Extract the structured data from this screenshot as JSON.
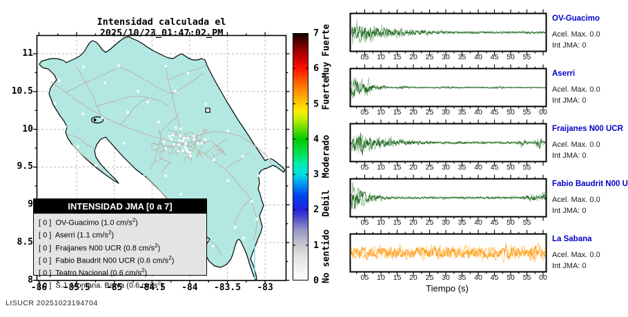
{
  "header": {
    "title": "Intensidad calculada el 2025/10/23_01:47:02_PM"
  },
  "watermark": "LISUCR 20251023194704",
  "map": {
    "x_ticks": [
      "-86",
      "-85.5",
      "-85",
      "-84.5",
      "-84",
      "-83.5",
      "-83"
    ],
    "y_ticks": [
      "11",
      "10.5",
      "10",
      "9.5",
      "9",
      "8.5",
      "8"
    ],
    "land_color": "#b3e8e2",
    "road_color": "#bdb5ad",
    "grid_color": "#b9b9b9",
    "station_color": "#ffffff",
    "marker_glyph": "u"
  },
  "legend": {
    "title": "INTENSIDAD JMA [0 a 7]",
    "unit": "cm/s",
    "unit_exp": "2",
    "rows": [
      {
        "jma": "0",
        "name": "OV-Guacimo",
        "accel": "1.0"
      },
      {
        "jma": "0",
        "name": "Aserri",
        "accel": "1.1"
      },
      {
        "jma": "0",
        "name": "Fraijanes N00 UCR",
        "accel": "0.8"
      },
      {
        "jma": "0",
        "name": "Fabio Baudrit N00 UCR",
        "accel": "0.6"
      },
      {
        "jma": "0",
        "name": "Teatro Nacional",
        "accel": "0.6"
      },
      {
        "jma": "0",
        "name": "S.J. Montana. Barva",
        "accel": "0.6"
      }
    ]
  },
  "colorbar": {
    "ticks": [
      "0",
      "1",
      "2",
      "3",
      "4",
      "5",
      "6",
      "7"
    ],
    "labels": [
      {
        "text": "No sentido",
        "value": 0.68
      },
      {
        "text": "Debil",
        "value": 2.18
      },
      {
        "text": "Moderado",
        "value": 3.5
      },
      {
        "text": "Fuerte",
        "value": 5.28
      },
      {
        "text": "Muy Fuerte",
        "value": 6.5
      }
    ],
    "stops": [
      {
        "v": 0.0,
        "c": "#ffffff"
      },
      {
        "v": 0.7,
        "c": "#e0e0e2"
      },
      {
        "v": 1.0,
        "c": "#c6c6cf"
      },
      {
        "v": 1.4,
        "c": "#9898c8"
      },
      {
        "v": 1.8,
        "c": "#4444cc"
      },
      {
        "v": 2.0,
        "c": "#2222dd"
      },
      {
        "v": 2.4,
        "c": "#0044ee"
      },
      {
        "v": 2.8,
        "c": "#00aaee"
      },
      {
        "v": 3.0,
        "c": "#00dde0"
      },
      {
        "v": 3.3,
        "c": "#00eeaa"
      },
      {
        "v": 3.6,
        "c": "#00e055"
      },
      {
        "v": 4.0,
        "c": "#00cc00"
      },
      {
        "v": 4.3,
        "c": "#66dd00"
      },
      {
        "v": 4.6,
        "c": "#ccee00"
      },
      {
        "v": 4.8,
        "c": "#ffee00"
      },
      {
        "v": 5.0,
        "c": "#ffcc00"
      },
      {
        "v": 5.2,
        "c": "#ffaa00"
      },
      {
        "v": 5.6,
        "c": "#ff6600"
      },
      {
        "v": 6.0,
        "c": "#ff1100"
      },
      {
        "v": 6.3,
        "c": "#cc0000"
      },
      {
        "v": 6.6,
        "c": "#880000"
      },
      {
        "v": 7.0,
        "c": "#150000"
      }
    ]
  },
  "xlabel": "Tiempo (s)",
  "traces": [
    {
      "station": "OV-Guacimo",
      "acel_label": "Acel. Max. 0.0",
      "int_label": "Int JMA: 0",
      "ticks": [
        "05",
        "10",
        "15",
        "20",
        "25",
        "30",
        "35",
        "40",
        "45",
        "50",
        "55"
      ],
      "color_dark": "#1d641d",
      "color_light": "#8fbc8f",
      "seed": 11,
      "env": {
        "k": 4.2,
        "atk": 0.008,
        "floor": 0.1,
        "amp": 21,
        "bursts": []
      }
    },
    {
      "station": "Aserri",
      "acel_label": "Acel. Max. 0.0",
      "int_label": "Int JMA: 0",
      "ticks": [
        "05",
        "10",
        "15",
        "20",
        "25",
        "30",
        "35",
        "40",
        "45",
        "50",
        "55",
        "00"
      ],
      "color_dark": "#1d641d",
      "color_light": "#8fbc8f",
      "seed": 29,
      "env": {
        "k": 16,
        "atk": 0.004,
        "floor": 0.045,
        "amp": 27,
        "bursts": [
          [
            0.09,
            0.28,
            0.02
          ],
          [
            0.16,
            0.12,
            0.02
          ],
          [
            0.27,
            0.06,
            0.03
          ],
          [
            0.5,
            0.03,
            0.05
          ],
          [
            0.75,
            0.04,
            0.03
          ]
        ]
      }
    },
    {
      "station": "Fraijanes N00 UCR",
      "acel_label": "Acel. Max. 0.0",
      "int_label": "Int JMA: 0",
      "ticks": [
        "05",
        "10",
        "15",
        "20",
        "25",
        "30",
        "35",
        "40",
        "45",
        "50",
        "55"
      ],
      "color_dark": "#1d641d",
      "color_light": "#8fbc8f",
      "seed": 47,
      "env": {
        "k": 4.8,
        "atk": 0.006,
        "floor": 0.11,
        "amp": 20,
        "bursts": [
          [
            0.055,
            0.5,
            0.012
          ],
          [
            0.88,
            0.18,
            0.02
          ],
          [
            0.965,
            0.5,
            0.015
          ]
        ]
      }
    },
    {
      "station": "Fabio Baudrit N00 UCR",
      "acel_label": "Acel. Max. 0.0",
      "int_label": "Int JMA: 0",
      "ticks": [
        "05",
        "10",
        "15",
        "20",
        "25",
        "30",
        "35",
        "40",
        "45",
        "50",
        "55"
      ],
      "color_dark": "#1d641d",
      "color_light": "#8fbc8f",
      "seed": 63,
      "env": {
        "k": 11,
        "atk": 0.004,
        "floor": 0.085,
        "amp": 25,
        "bursts": [
          [
            0.93,
            0.18,
            0.03
          ],
          [
            0.99,
            0.25,
            0.015
          ]
        ]
      }
    },
    {
      "station": "La Sabana",
      "acel_label": "Acel. Max. 0.0",
      "int_label": "Int JMA: 0",
      "ticks": [
        "05",
        "10",
        "15",
        "20",
        "25",
        "30",
        "35",
        "40",
        "45",
        "50",
        "55",
        "00"
      ],
      "color_dark": "#ff9d1c",
      "color_light": "#ffd083",
      "seed": 85,
      "env": {
        "k": 0,
        "atk": 0,
        "floor": 1,
        "amp": 12,
        "flat": 1,
        "bursts": [
          [
            0.8,
            0.2,
            0.03
          ],
          [
            0.935,
            0.55,
            0.025
          ]
        ]
      }
    }
  ],
  "chart_data": [
    {
      "type": "map",
      "title": "Intensidad calculada el 2025/10/23_01:47:02_PM",
      "region": "Costa Rica",
      "lon_range": [
        -86,
        -82.7
      ],
      "lat_range": [
        8,
        11.25
      ],
      "lon_ticks": [
        -86,
        -85.5,
        -85,
        -84.5,
        -84,
        -83.5,
        -83
      ],
      "lat_ticks": [
        8,
        8.5,
        9,
        9.5,
        10,
        10.5,
        11
      ],
      "colorbar": {
        "label": "INTENSIDAD JMA [0 a 7]",
        "range": [
          0,
          7
        ],
        "categories": [
          "No sentido",
          "Debil",
          "Moderado",
          "Fuerte",
          "Muy Fuerte"
        ]
      },
      "stations": [
        {
          "name": "OV-Guacimo",
          "intensity_jma": 0,
          "accel_cm_s2": 1.0
        },
        {
          "name": "Aserri",
          "intensity_jma": 0,
          "accel_cm_s2": 1.1
        },
        {
          "name": "Fraijanes N00 UCR",
          "intensity_jma": 0,
          "accel_cm_s2": 0.8
        },
        {
          "name": "Fabio Baudrit N00 UCR",
          "intensity_jma": 0,
          "accel_cm_s2": 0.6
        },
        {
          "name": "Teatro Nacional",
          "intensity_jma": 0,
          "accel_cm_s2": 0.6
        },
        {
          "name": "S.J. Montana. Barva",
          "intensity_jma": 0,
          "accel_cm_s2": 0.6
        }
      ]
    },
    {
      "type": "line",
      "subtype": "seismograms",
      "xlabel": "Tiempo (s)",
      "x_tick_step_s": 5,
      "series": [
        {
          "name": "OV-Guacimo",
          "acel_max": 0.0,
          "int_jma": 0,
          "shape": "slowly decaying burst"
        },
        {
          "name": "Aserri",
          "acel_max": 0.0,
          "int_jma": 0,
          "shape": "sharp initial burst, fast decay"
        },
        {
          "name": "Fraijanes N00 UCR",
          "acel_max": 0.0,
          "int_jma": 0,
          "shape": "decaying burst with late pulse"
        },
        {
          "name": "Fabio Baudrit N00 UCR",
          "acel_max": 0.0,
          "int_jma": 0,
          "shape": "sharp burst, fast decay"
        },
        {
          "name": "La Sabana",
          "acel_max": 0.0,
          "int_jma": 0,
          "shape": "stationary noise"
        }
      ]
    }
  ]
}
